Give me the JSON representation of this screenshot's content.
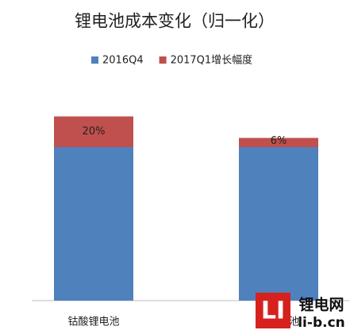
{
  "chart_data": {
    "type": "stacked-bar",
    "title": "锂电池成本变化（归一化）",
    "categories": [
      "钴酸锂电池",
      "三元电池"
    ],
    "series": [
      {
        "name": "2016Q4",
        "color": "#4f81bd",
        "values": [
          100,
          100
        ]
      },
      {
        "name": "2017Q1增长幅度",
        "color": "#c0504d",
        "values": [
          20,
          6
        ],
        "value_labels": [
          "20%",
          "6%"
        ]
      }
    ],
    "legend": "top"
  },
  "watermark": {
    "logo": "LI",
    "name": "锂电网",
    "url": "li-b.cn"
  }
}
